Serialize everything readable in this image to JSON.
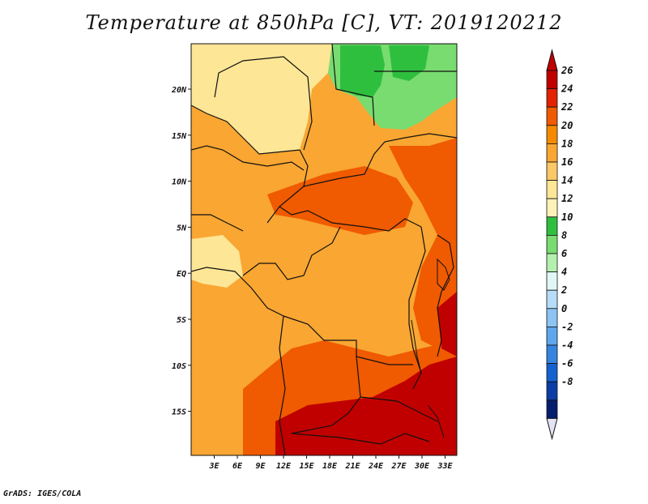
{
  "title": "Temperature at 850hPa [C], VT: 2019120212",
  "credit": "GrADS: IGES/COLA",
  "lat_labels": [
    "20N",
    "15N",
    "10N",
    "5N",
    "EQ",
    "5S",
    "10S",
    "15S"
  ],
  "lon_labels": [
    "3E",
    "6E",
    "9E",
    "12E",
    "15E",
    "18E",
    "21E",
    "24E",
    "27E",
    "30E",
    "33E"
  ],
  "colorbar": {
    "levels": [
      "26",
      "24",
      "22",
      "20",
      "18",
      "16",
      "14",
      "12",
      "10",
      "8",
      "6",
      "4",
      "2",
      "0",
      "-2",
      "-4",
      "-6",
      "-8"
    ],
    "colors": [
      "#c00000",
      "#e22200",
      "#f05a00",
      "#f58a00",
      "#f9a632",
      "#fbc867",
      "#fde695",
      "#fff2b6",
      "#2fbf3f",
      "#78dc70",
      "#b4f0ad",
      "#e0f7f4",
      "#b6dcf8",
      "#8cc4f3",
      "#5ea7ec",
      "#3684e0",
      "#1461d0",
      "#0c3da6",
      "#061e6e"
    ],
    "top_tip_color": "#c00000",
    "bottom_tip_color": "#e3e3f3"
  },
  "map_fill": {
    "background": "#f9a632",
    "warm": "#f05a00",
    "hot": "#c00000",
    "cool": "#fde695",
    "green_dark": "#2fbf3f",
    "green_light": "#78dc70",
    "boundary": "#111111"
  }
}
